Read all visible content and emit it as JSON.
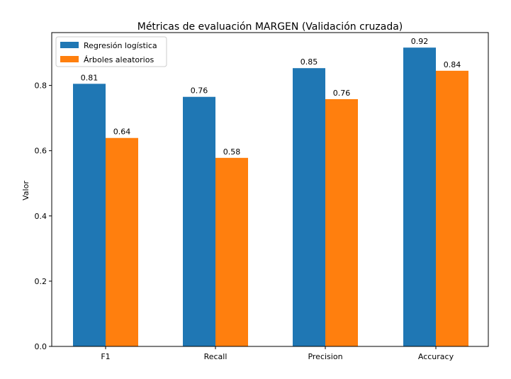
{
  "chart_data": {
    "type": "bar",
    "title": "Métricas de evaluación MARGEN (Validación cruzada)",
    "xlabel": "",
    "ylabel": "Valor",
    "categories": [
      "F1",
      "Recall",
      "Precision",
      "Accuracy"
    ],
    "series": [
      {
        "name": "Regresión logística",
        "color": "#1f77b4",
        "values": [
          0.805,
          0.765,
          0.853,
          0.916
        ],
        "labels": [
          "0.81",
          "0.76",
          "0.85",
          "0.92"
        ]
      },
      {
        "name": "Árboles aleatorios",
        "color": "#ff7f0e",
        "values": [
          0.639,
          0.578,
          0.758,
          0.845
        ],
        "labels": [
          "0.64",
          "0.58",
          "0.76",
          "0.84"
        ]
      }
    ],
    "ylim": [
      0,
      0.962
    ],
    "yticks": [
      0.0,
      0.2,
      0.4,
      0.6,
      0.8
    ],
    "ytick_labels": [
      "0.0",
      "0.2",
      "0.4",
      "0.6",
      "0.8"
    ],
    "legend": "top-left",
    "grid": false
  }
}
